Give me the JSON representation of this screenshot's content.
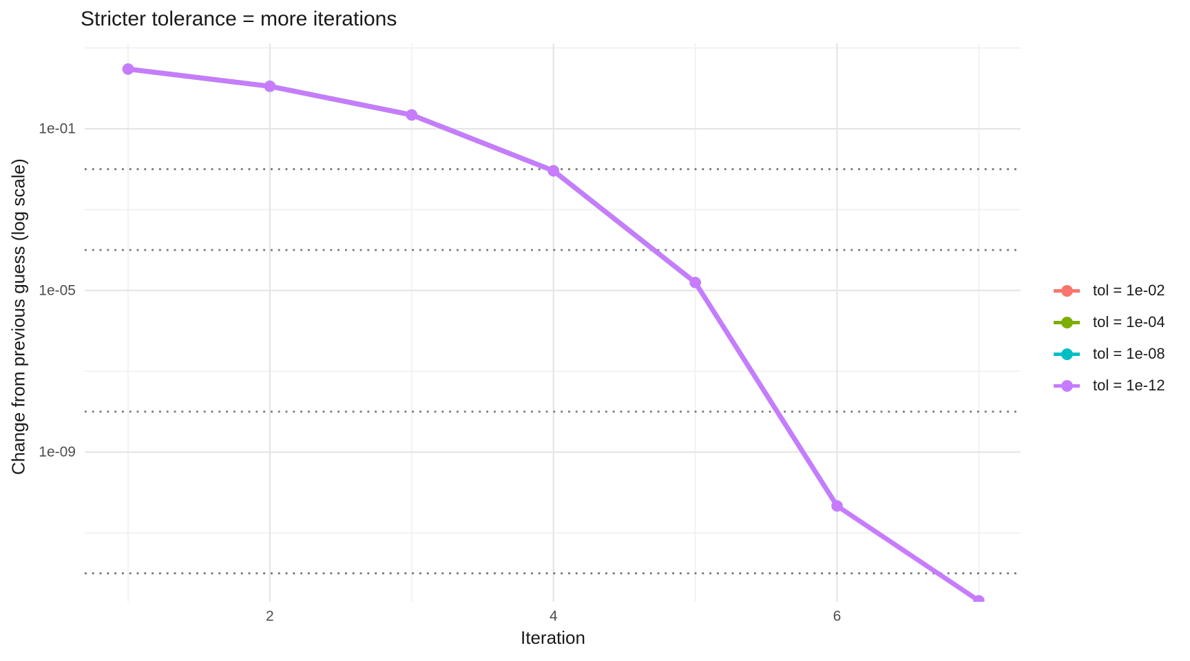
{
  "chart_data": {
    "type": "line",
    "title": "Stricter tolerance = more iterations",
    "xlabel": "Iteration",
    "ylabel": "Change from previous guess (log scale)",
    "x_scale": "linear",
    "y_scale": "log10",
    "xlim": [
      0.7,
      7.3
    ],
    "ylim": [
      2e-13,
      13
    ],
    "grid": {
      "major": true,
      "minor": true,
      "major_color": "#e5e5e5",
      "minor_color": "#f0f0f0"
    },
    "x_major_ticks": [
      2,
      4,
      6
    ],
    "x_minor_gridlines": [
      1,
      3,
      5,
      7
    ],
    "y_major_ticks": [
      {
        "label": "1e-01",
        "value": 0.1
      },
      {
        "label": "1e-05",
        "value": 1e-05
      },
      {
        "label": "1e-09",
        "value": 1e-09
      }
    ],
    "y_minor_gridlines": [
      10.0,
      0.001,
      1e-07,
      1e-11
    ],
    "tolerance_lines": {
      "values": [
        0.01,
        0.0001,
        1e-08,
        1e-12
      ],
      "style": "dotted",
      "color": "#757575"
    },
    "legend_position": "right",
    "series": [
      {
        "name": "tol = 1e-02",
        "color": "#F8766D",
        "x": [
          1,
          2,
          3,
          4
        ],
        "values": [
          3.0,
          1.125,
          0.22,
          0.00912
        ]
      },
      {
        "name": "tol = 1e-04",
        "color": "#7CAE00",
        "x": [
          1,
          2,
          3,
          4,
          5
        ],
        "values": [
          3.0,
          1.125,
          0.22,
          0.00912,
          1.57e-05
        ]
      },
      {
        "name": "tol = 1e-08",
        "color": "#00BFC4",
        "x": [
          1,
          2,
          3,
          4,
          5,
          6
        ],
        "values": [
          3.0,
          1.125,
          0.22,
          0.00912,
          1.57e-05,
          4.66e-11
        ]
      },
      {
        "name": "tol = 1e-12",
        "color": "#C77CFF",
        "x": [
          1,
          2,
          3,
          4,
          5,
          6,
          7
        ],
        "values": [
          3.0,
          1.125,
          0.22,
          0.00912,
          1.57e-05,
          4.66e-11,
          2.1e-13
        ]
      }
    ]
  },
  "axis_text_color": "#4d4d4d"
}
